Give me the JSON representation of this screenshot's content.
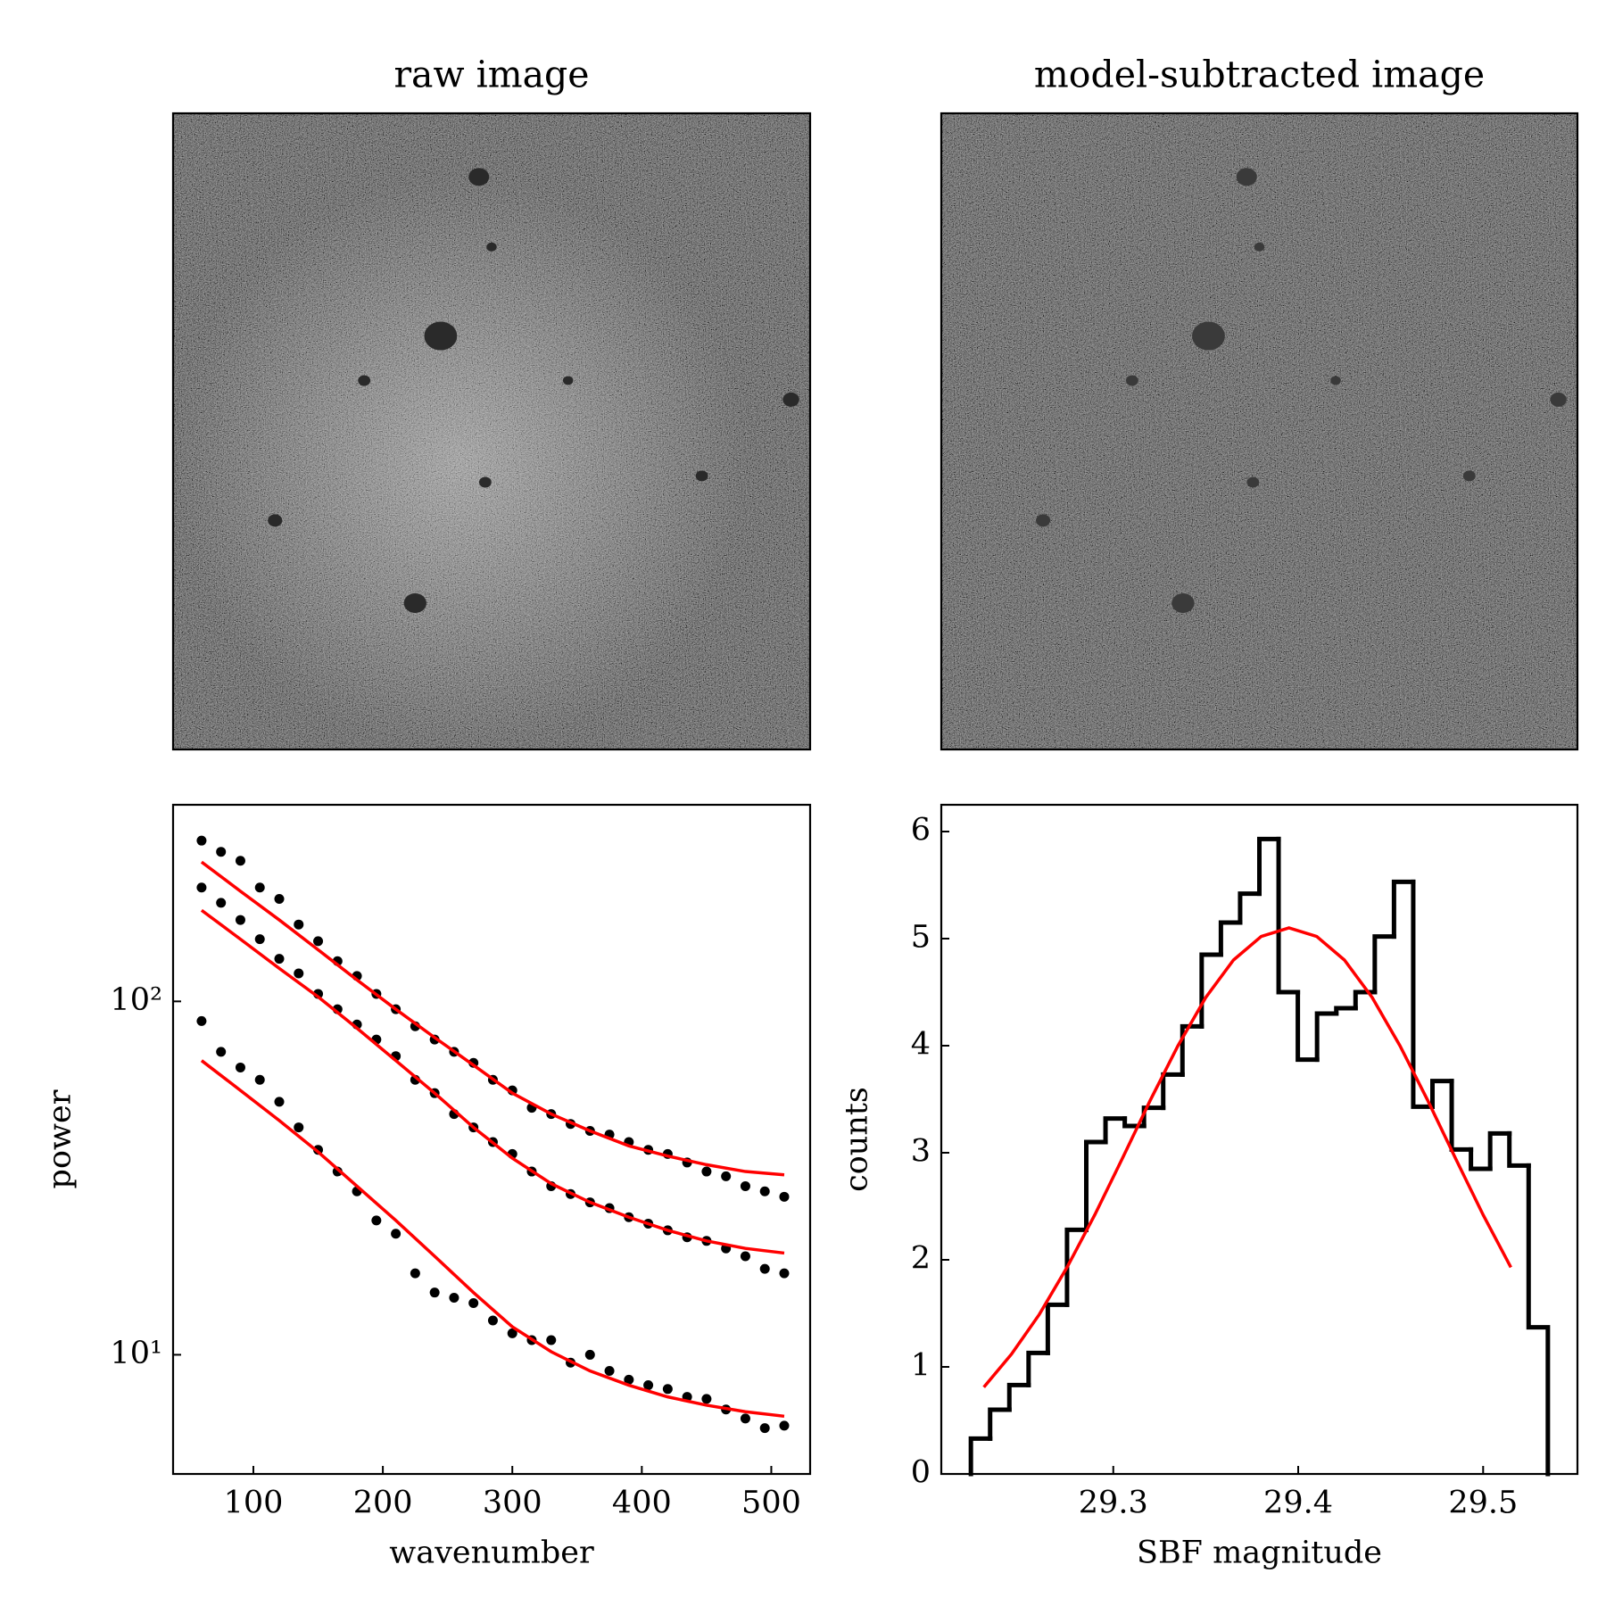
{
  "chart_data": [
    {
      "type": "image",
      "title": "raw image",
      "glow": true
    },
    {
      "type": "image",
      "title": "model-subtracted image",
      "glow": false
    },
    {
      "type": "scatter",
      "xlabel": "wavenumber",
      "ylabel": "power",
      "xlim": [
        38,
        530
      ],
      "xticks": [
        100,
        200,
        300,
        400,
        500
      ],
      "ylim": [
        4.6,
        360
      ],
      "ylog": true,
      "yticks": [
        {
          "value": 10,
          "label": "10¹"
        },
        {
          "value": 100,
          "label": "10²"
        }
      ],
      "x": [
        60,
        75,
        90,
        105,
        120,
        135,
        150,
        165,
        180,
        195,
        210,
        225,
        240,
        255,
        270,
        285,
        300,
        315,
        330,
        345,
        360,
        375,
        390,
        405,
        420,
        435,
        450,
        465,
        480,
        495,
        510
      ],
      "series": [
        {
          "color": "#000000",
          "values": [
            285,
            265,
            250,
            210,
            195,
            165,
            148,
            130,
            118,
            105,
            95,
            85,
            78,
            72,
            67,
            60,
            56,
            50,
            48,
            45,
            43,
            42,
            40,
            38,
            37,
            35,
            33,
            32,
            30,
            29,
            28
          ]
        },
        {
          "color": "#000000",
          "values": [
            210,
            190,
            170,
            150,
            132,
            120,
            105,
            95,
            86,
            78,
            70,
            60,
            55,
            48,
            44,
            40,
            37,
            33,
            30,
            28.5,
            27,
            26,
            24.5,
            23.5,
            22.5,
            21.5,
            21,
            20,
            19,
            17.5,
            17
          ]
        },
        {
          "color": "#000000",
          "values": [
            88,
            72,
            65,
            60,
            52,
            44,
            38,
            33,
            29,
            24,
            22,
            17,
            15,
            14.5,
            14,
            12.5,
            11.5,
            11,
            11,
            9.5,
            10,
            9,
            8.5,
            8.2,
            8,
            7.6,
            7.5,
            7,
            6.6,
            6.2,
            6.3
          ]
        }
      ],
      "fit_x": [
        60,
        90,
        120,
        150,
        180,
        210,
        240,
        270,
        300,
        330,
        360,
        390,
        420,
        450,
        480,
        510
      ],
      "fit_series": [
        {
          "color": "#ff0000",
          "values": [
            248,
            205,
            170,
            140,
            115,
            95,
            79,
            66,
            55,
            48,
            43,
            39,
            36.5,
            34.5,
            33,
            32.3
          ]
        },
        {
          "color": "#ff0000",
          "values": [
            181,
            150,
            124,
            103,
            84,
            68,
            55,
            44,
            36,
            30.5,
            27,
            24.5,
            22.5,
            21,
            20,
            19.4
          ]
        },
        {
          "color": "#ff0000",
          "values": [
            68,
            56,
            46,
            37.5,
            30,
            24,
            19,
            15,
            12,
            10.2,
            9,
            8.2,
            7.6,
            7.2,
            6.9,
            6.7
          ]
        }
      ]
    },
    {
      "type": "histogram",
      "xlabel": "SBF magnitude",
      "ylabel": "counts",
      "xlim": [
        29.207,
        29.551
      ],
      "xticks": [
        29.3,
        29.4,
        29.5
      ],
      "ylim": [
        0,
        6.25
      ],
      "yticks": [
        0,
        1,
        2,
        3,
        4,
        5,
        6
      ],
      "color": "#000000",
      "bins": [
        29.223,
        29.2334,
        29.2438,
        29.2542,
        29.2646,
        29.275,
        29.2854,
        29.2958,
        29.3062,
        29.3166,
        29.327,
        29.3374,
        29.3478,
        29.3582,
        29.3686,
        29.379,
        29.3894,
        29.3998,
        29.4102,
        29.4206,
        29.431,
        29.4414,
        29.4518,
        29.4622,
        29.4726,
        29.483,
        29.4934,
        29.5038,
        29.5142,
        29.5246,
        29.535
      ],
      "counts": [
        0.33,
        0.6,
        0.83,
        1.13,
        1.58,
        2.28,
        3.1,
        3.32,
        3.25,
        3.42,
        3.73,
        4.18,
        4.85,
        5.15,
        5.42,
        5.93,
        4.5,
        3.87,
        4.3,
        4.35,
        4.5,
        5.02,
        5.53,
        3.43,
        3.67,
        3.03,
        2.85,
        3.18,
        2.88,
        1.37
      ],
      "curve_color": "#ff0000",
      "curve_x": [
        29.23,
        29.245,
        29.26,
        29.275,
        29.29,
        29.305,
        29.32,
        29.335,
        29.35,
        29.365,
        29.38,
        29.395,
        29.41,
        29.425,
        29.44,
        29.455,
        29.47,
        29.485,
        29.5,
        29.515
      ],
      "curve_values": [
        0.81,
        1.12,
        1.49,
        1.93,
        2.42,
        2.95,
        3.49,
        4.0,
        4.45,
        4.8,
        5.02,
        5.1,
        5.02,
        4.8,
        4.45,
        4.0,
        3.49,
        2.95,
        2.42,
        1.93
      ]
    }
  ]
}
